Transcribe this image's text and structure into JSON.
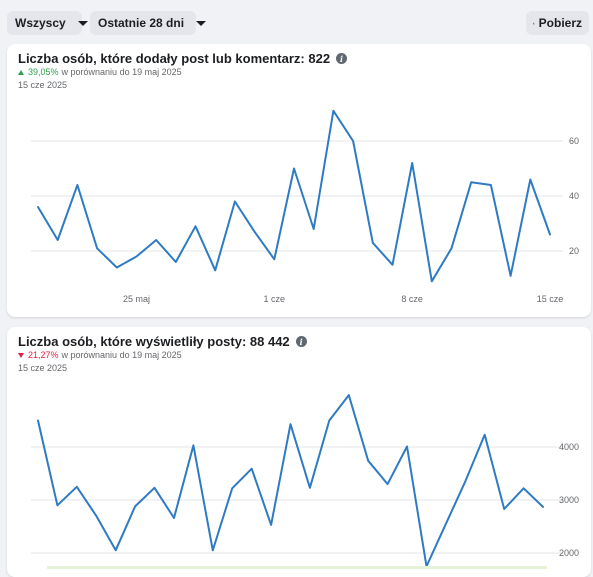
{
  "toolbar": {
    "filter_label": "Wszyscy",
    "range_label": "Ostatnie 28 dni",
    "download_label": "Pobierz",
    "download_icon": "download-icon",
    "caret_icon": "chevron-down-icon"
  },
  "colors": {
    "line": "#2e7bc4",
    "positive": "#31a24c",
    "negative": "#e41e3f"
  },
  "cards": [
    {
      "title": "Liczba osób, które dodały post lub komentarz: 822",
      "change": "39,05%",
      "change_direction": "up",
      "comparison": "w porównaniu do 19 maj 2025",
      "date": "15 cze 2025"
    },
    {
      "title": "Liczba osób, które wyświetliły posty: 88 442",
      "change": "21,27%",
      "change_direction": "down",
      "comparison": "w porównaniu do 19 maj 2025",
      "date": "15 cze 2025"
    }
  ],
  "chart_data": [
    {
      "type": "line",
      "series": [
        {
          "values": [
            36,
            24,
            44,
            21,
            14,
            18,
            24,
            16,
            29,
            13,
            38,
            27,
            17,
            50,
            28,
            71,
            60,
            23,
            15,
            52,
            9,
            21,
            45,
            44,
            11,
            46,
            26
          ]
        }
      ],
      "x_tick_labels": [
        "25 maj",
        "1 cze",
        "8 cze",
        "15 cze"
      ],
      "y_tick_labels": [
        "20",
        "40",
        "60"
      ],
      "y_ticks": [
        20,
        40,
        60
      ],
      "ylim": [
        0,
        80
      ],
      "grid": true
    },
    {
      "type": "line",
      "series": [
        {
          "values": [
            4500,
            2900,
            3250,
            2700,
            2050,
            2880,
            3230,
            2660,
            4030,
            2050,
            3220,
            3590,
            2530,
            4430,
            3230,
            4500,
            4980,
            3740,
            3300,
            4010,
            1750,
            2550,
            3350,
            4230,
            2830,
            3220,
            2870
          ]
        }
      ],
      "y_tick_labels": [
        "2000",
        "3000",
        "4000"
      ],
      "y_ticks": [
        2000,
        3000,
        4000
      ],
      "grid": true
    }
  ]
}
